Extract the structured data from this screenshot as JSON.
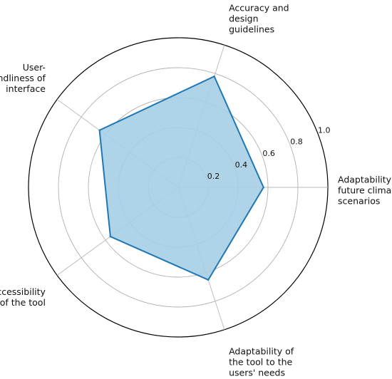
{
  "chart_data": {
    "type": "radar",
    "title": "",
    "categories": [
      "Adaptability to future climate scenarios",
      "Accuracy and design guidelines",
      "User-friendliness of interface",
      "Accessibility of the tool",
      "Adaptability of the tool to the users' needs"
    ],
    "category_label_lines": [
      [
        "Adaptability to",
        "future climate",
        "scenarios"
      ],
      [
        "Accuracy and",
        "design",
        "guidelines"
      ],
      [
        "User-",
        "friendliness of",
        "interface"
      ],
      [
        "Accessibility",
        "of the tool"
      ],
      [
        "Adaptability of",
        "the tool to the",
        "users' needs"
      ]
    ],
    "series": [
      {
        "values": [
          0.57,
          0.78,
          0.65,
          0.56,
          0.65
        ]
      }
    ],
    "rlim": [
      0,
      1.0
    ],
    "radial_ticks": [
      0.2,
      0.4,
      0.6,
      0.8,
      1.0
    ],
    "radial_tick_labels": [
      "0.2",
      "0.4",
      "0.6",
      "0.8",
      "1.0"
    ],
    "grid": true,
    "legend": "none",
    "colors": {
      "line": "#1f77b4",
      "fill": "#a6cfe6",
      "grid": "#b0b0b0",
      "spoke": "#b8b8b8",
      "outer_ring": "#000000"
    }
  }
}
